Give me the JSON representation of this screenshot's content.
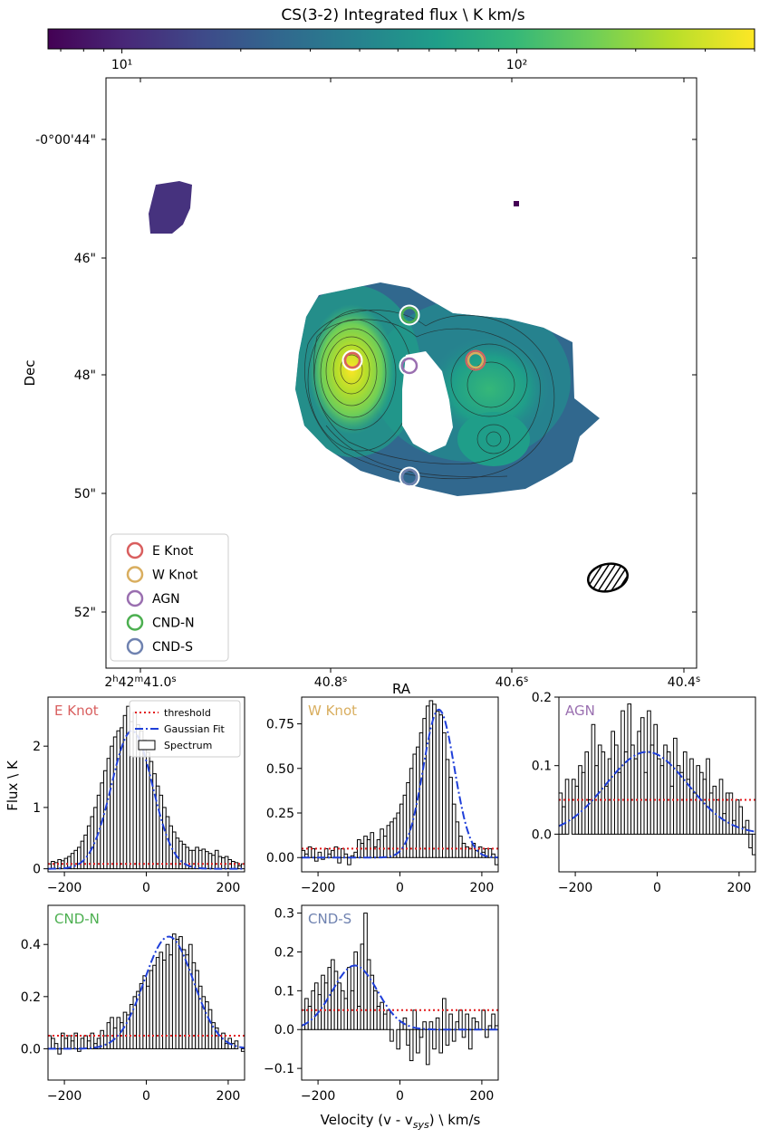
{
  "colorbar": {
    "label": "CS(3-2) Integrated flux \\ K km/s",
    "scale": "log",
    "range": [
      6.5,
      400
    ],
    "ticks": [
      {
        "value": 10,
        "label": "10¹"
      },
      {
        "value": 100,
        "label": "10²"
      }
    ],
    "colormap": [
      "#440154",
      "#482878",
      "#3e4a89",
      "#31688e",
      "#26828e",
      "#1f9e89",
      "#35b779",
      "#6ece58",
      "#b5de2b",
      "#fde725"
    ]
  },
  "map": {
    "xlabel": "RA",
    "ylabel": "Dec",
    "dec_ticks": [
      "-0°00'44\"",
      "46\"",
      "48\"",
      "50\"",
      "52\""
    ],
    "ra_ticks": [
      {
        "main": "2h42m41.0",
        "sup": "s"
      },
      {
        "main": "40.8",
        "sup": "s"
      },
      {
        "main": "40.6",
        "sup": "s"
      },
      {
        "main": "40.4",
        "sup": "s"
      }
    ],
    "legend": [
      {
        "label": "E Knot",
        "color": "#d95f5f"
      },
      {
        "label": "W Knot",
        "color": "#d9ae5f"
      },
      {
        "label": "AGN",
        "color": "#9a6fb0"
      },
      {
        "label": "CND-N",
        "color": "#4caf50"
      },
      {
        "label": "CND-S",
        "color": "#6f82b0"
      }
    ],
    "beam": "hatched ellipse"
  },
  "chart_data": [
    {
      "type": "bar",
      "title": "E Knot",
      "title_color": "#d95f5f",
      "xlim": [
        -240,
        240
      ],
      "ylim": [
        -0.05,
        2.8
      ],
      "yticks": [
        0,
        1,
        2
      ],
      "xticks": [
        -200,
        0,
        200
      ],
      "threshold": 0.08,
      "gaussian": {
        "amp": 2.25,
        "center": -35,
        "sigma": 50
      },
      "x": [
        -236,
        -228,
        -220,
        -212,
        -204,
        -196,
        -188,
        -180,
        -172,
        -164,
        -156,
        -148,
        -140,
        -132,
        -124,
        -116,
        -108,
        -100,
        -92,
        -84,
        -76,
        -68,
        -60,
        -52,
        -44,
        -36,
        -28,
        -20,
        -12,
        -4,
        4,
        12,
        20,
        28,
        36,
        44,
        52,
        60,
        68,
        76,
        84,
        92,
        100,
        108,
        116,
        124,
        132,
        140,
        148,
        156,
        164,
        172,
        180,
        188,
        196,
        204,
        212,
        220,
        228,
        236
      ],
      "values": [
        0.08,
        0.12,
        0.1,
        0.15,
        0.13,
        0.17,
        0.2,
        0.25,
        0.3,
        0.35,
        0.45,
        0.55,
        0.7,
        0.85,
        1.0,
        1.2,
        1.4,
        1.6,
        1.8,
        2.0,
        2.15,
        2.25,
        2.3,
        2.5,
        2.65,
        2.4,
        2.55,
        2.35,
        2.25,
        2.1,
        1.9,
        1.75,
        1.55,
        1.35,
        1.2,
        1.0,
        0.85,
        0.7,
        0.6,
        0.5,
        0.45,
        0.4,
        0.35,
        0.3,
        0.3,
        0.35,
        0.3,
        0.32,
        0.28,
        0.25,
        0.22,
        0.3,
        0.2,
        0.18,
        0.2,
        0.15,
        0.12,
        0.1,
        0.05,
        0.08
      ],
      "legend": [
        "threshold",
        "Gaussian Fit",
        "Spectrum"
      ]
    },
    {
      "type": "bar",
      "title": "W Knot",
      "title_color": "#d9ae5f",
      "xlim": [
        -240,
        240
      ],
      "ylim": [
        -0.08,
        0.9
      ],
      "yticks": [
        0.0,
        0.25,
        0.5,
        0.75
      ],
      "ytick_labels": [
        "0.00",
        "0.25",
        "0.50",
        "0.75"
      ],
      "xticks": [
        -200,
        0,
        200
      ],
      "threshold": 0.05,
      "gaussian": {
        "amp": 0.83,
        "center": 95,
        "sigma": 38
      },
      "x": [
        -236,
        -228,
        -220,
        -212,
        -204,
        -196,
        -188,
        -180,
        -172,
        -164,
        -156,
        -148,
        -140,
        -132,
        -124,
        -116,
        -108,
        -100,
        -92,
        -84,
        -76,
        -68,
        -60,
        -52,
        -44,
        -36,
        -28,
        -20,
        -12,
        -4,
        4,
        12,
        20,
        28,
        36,
        44,
        52,
        60,
        68,
        76,
        84,
        92,
        100,
        108,
        116,
        124,
        132,
        140,
        148,
        156,
        164,
        172,
        180,
        188,
        196,
        204,
        212,
        220,
        228,
        236
      ],
      "values": [
        0.04,
        0.02,
        0.06,
        0.05,
        -0.02,
        0.03,
        -0.01,
        0.05,
        0.02,
        0.04,
        0.06,
        -0.03,
        0.05,
        0.02,
        -0.04,
        0.01,
        0.03,
        0.1,
        0.08,
        0.12,
        0.1,
        0.14,
        0.06,
        0.1,
        0.16,
        0.12,
        0.18,
        0.2,
        0.22,
        0.25,
        0.3,
        0.35,
        0.42,
        0.5,
        0.58,
        0.62,
        0.7,
        0.78,
        0.85,
        0.88,
        0.86,
        0.82,
        0.8,
        0.7,
        0.55,
        0.45,
        0.3,
        0.2,
        0.12,
        0.08,
        0.06,
        0.05,
        0.08,
        0.04,
        0.06,
        0.03,
        0.05,
        0.05,
        0.02,
        -0.04
      ]
    },
    {
      "type": "bar",
      "title": "AGN",
      "title_color": "#9a6fb0",
      "xlim": [
        -240,
        240
      ],
      "ylim": [
        -0.055,
        0.2
      ],
      "yticks": [
        0.0,
        0.1,
        0.2
      ],
      "ytick_labels": [
        "0.0",
        "0.1",
        "0.2"
      ],
      "xticks": [
        -200,
        0,
        200
      ],
      "threshold": 0.05,
      "gaussian": {
        "amp": 0.12,
        "center": -25,
        "sigma": 100
      },
      "x": [
        -236,
        -228,
        -220,
        -212,
        -204,
        -196,
        -188,
        -180,
        -172,
        -164,
        -156,
        -148,
        -140,
        -132,
        -124,
        -116,
        -108,
        -100,
        -92,
        -84,
        -76,
        -68,
        -60,
        -52,
        -44,
        -36,
        -28,
        -20,
        -12,
        -4,
        4,
        12,
        20,
        28,
        36,
        44,
        52,
        60,
        68,
        76,
        84,
        92,
        100,
        108,
        116,
        124,
        132,
        140,
        148,
        156,
        164,
        172,
        180,
        188,
        196,
        204,
        212,
        220,
        228,
        236
      ],
      "values": [
        0.06,
        0.04,
        0.08,
        0.0,
        0.08,
        0.07,
        0.1,
        0.09,
        0.12,
        0.05,
        0.16,
        0.1,
        0.13,
        0.12,
        0.07,
        0.11,
        0.15,
        0.13,
        0.09,
        0.18,
        0.12,
        0.19,
        0.13,
        0.11,
        0.15,
        0.17,
        0.09,
        0.18,
        0.13,
        0.16,
        0.11,
        0.1,
        0.13,
        0.12,
        0.07,
        0.14,
        0.1,
        0.09,
        0.12,
        0.08,
        0.11,
        0.06,
        0.1,
        0.09,
        0.08,
        0.11,
        0.06,
        0.07,
        0.05,
        0.08,
        0.03,
        0.06,
        0.06,
        0.02,
        0.05,
        0.04,
        0.01,
        0.02,
        -0.02,
        -0.03
      ]
    },
    {
      "type": "bar",
      "title": "CND-N",
      "title_color": "#4caf50",
      "xlim": [
        -240,
        240
      ],
      "ylim": [
        -0.12,
        0.55
      ],
      "yticks": [
        0.0,
        0.2,
        0.4
      ],
      "ytick_labels": [
        "0.0",
        "0.2",
        "0.4"
      ],
      "xticks": [
        -200,
        0,
        200
      ],
      "threshold": 0.05,
      "gaussian": {
        "amp": 0.43,
        "center": 55,
        "sigma": 60
      },
      "x": [
        -236,
        -228,
        -220,
        -212,
        -204,
        -196,
        -188,
        -180,
        -172,
        -164,
        -156,
        -148,
        -140,
        -132,
        -124,
        -116,
        -108,
        -100,
        -92,
        -84,
        -76,
        -68,
        -60,
        -52,
        -44,
        -36,
        -28,
        -20,
        -12,
        -4,
        4,
        12,
        20,
        28,
        36,
        44,
        52,
        60,
        68,
        76,
        84,
        92,
        100,
        108,
        116,
        124,
        132,
        140,
        148,
        156,
        164,
        172,
        180,
        188,
        196,
        204,
        212,
        220,
        228,
        236
      ],
      "values": [
        0.05,
        0.04,
        0.02,
        -0.02,
        0.06,
        0.04,
        0.05,
        0.03,
        0.06,
        -0.01,
        0.04,
        0.05,
        0.03,
        0.06,
        0.02,
        0.04,
        0.07,
        0.05,
        0.1,
        0.12,
        0.08,
        0.12,
        0.1,
        0.14,
        0.13,
        0.17,
        0.2,
        0.22,
        0.25,
        0.28,
        0.24,
        0.3,
        0.32,
        0.35,
        0.37,
        0.34,
        0.4,
        0.36,
        0.44,
        0.42,
        0.43,
        0.38,
        0.36,
        0.4,
        0.33,
        0.3,
        0.24,
        0.2,
        0.18,
        0.15,
        0.1,
        0.08,
        0.05,
        0.06,
        0.02,
        0.04,
        0.02,
        0.03,
        0.0,
        -0.01
      ]
    },
    {
      "type": "bar",
      "title": "CND-S",
      "title_color": "#6f82b0",
      "xlim": [
        -240,
        240
      ],
      "ylim": [
        -0.13,
        0.32
      ],
      "yticks": [
        -0.1,
        0.0,
        0.1,
        0.2,
        0.3
      ],
      "ytick_labels": [
        "−0.1",
        "0.0",
        "0.1",
        "0.2",
        "0.3"
      ],
      "xticks": [
        -200,
        0,
        200
      ],
      "xlabel": "Velocity (v - v_sys) \\ km/s",
      "threshold": 0.05,
      "gaussian": {
        "amp": 0.165,
        "center": -110,
        "sigma": 55
      },
      "x": [
        -236,
        -228,
        -220,
        -212,
        -204,
        -196,
        -188,
        -180,
        -172,
        -164,
        -156,
        -148,
        -140,
        -132,
        -124,
        -116,
        -108,
        -100,
        -92,
        -84,
        -76,
        -68,
        -60,
        -52,
        -44,
        -36,
        -28,
        -20,
        -12,
        -4,
        4,
        12,
        20,
        28,
        36,
        44,
        52,
        60,
        68,
        76,
        84,
        92,
        100,
        108,
        116,
        124,
        132,
        140,
        148,
        156,
        164,
        172,
        180,
        188,
        196,
        204,
        212,
        220,
        228,
        236
      ],
      "values": [
        0.05,
        0.08,
        0.06,
        0.1,
        0.12,
        0.09,
        0.14,
        0.12,
        0.16,
        0.18,
        0.15,
        0.12,
        0.1,
        0.08,
        0.16,
        0.1,
        0.2,
        0.06,
        0.22,
        0.3,
        0.18,
        0.14,
        0.1,
        0.06,
        0.07,
        0.04,
        0.05,
        -0.03,
        0.0,
        -0.05,
        0.02,
        0.03,
        -0.04,
        -0.08,
        0.05,
        -0.06,
        -0.02,
        0.02,
        -0.09,
        0.02,
        -0.05,
        0.03,
        -0.06,
        0.08,
        -0.04,
        0.04,
        -0.03,
        0.02,
        0.05,
        -0.02,
        0.04,
        -0.05,
        0.03,
        0.02,
        0.0,
        0.05,
        -0.02,
        0.01,
        0.04,
        0.01
      ]
    }
  ],
  "labels": {
    "ylabel": "Flux  \\  K",
    "xlabel_main": "Velocity (v - v",
    "xlabel_sub": "sys",
    "xlabel_tail": ")  \\  km/s"
  }
}
